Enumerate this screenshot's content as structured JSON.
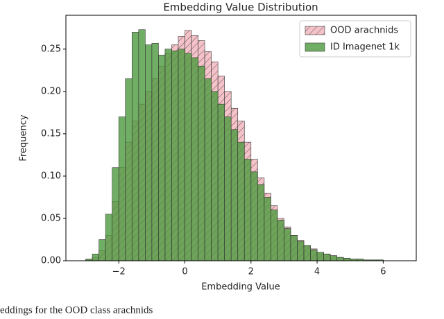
{
  "chart_data": {
    "type": "histogram",
    "title": "Embedding Value Distribution",
    "x_label": "Embedding Value",
    "y_label": "Frequency",
    "bins": [
      -3,
      -2.8,
      -2.6,
      -2.4,
      -2.2,
      -2,
      -1.8,
      -1.6,
      -1.4,
      -1.2,
      -1,
      -0.8,
      -0.6,
      -0.4,
      -0.2,
      0,
      0.2,
      0.4,
      0.6,
      0.8,
      1,
      1.2,
      1.4,
      1.6,
      1.8,
      2,
      2.2,
      2.4,
      2.6,
      2.8,
      3,
      3.2,
      3.4,
      3.6,
      3.8,
      4,
      4.2,
      4.4,
      4.6,
      4.8,
      5,
      5.2,
      5.4,
      5.6,
      5.8,
      6
    ],
    "series": [
      {
        "name": "OOD arachnids",
        "color": "#f4c2c8",
        "hatch": true,
        "values": [
          0.001,
          0.004,
          0.012,
          0.03,
          0.07,
          0.11,
          0.14,
          0.165,
          0.185,
          0.2,
          0.215,
          0.23,
          0.245,
          0.255,
          0.265,
          0.272,
          0.266,
          0.26,
          0.247,
          0.235,
          0.218,
          0.2,
          0.18,
          0.165,
          0.14,
          0.12,
          0.098,
          0.08,
          0.065,
          0.05,
          0.04,
          0.03,
          0.024,
          0.018,
          0.014,
          0.01,
          0.008,
          0.006,
          0.004,
          0.003,
          0.002,
          0.002,
          0.001,
          0.001,
          0.001
        ]
      },
      {
        "name": "ID Imagenet 1k",
        "color": "#4e9a3e",
        "hatch": false,
        "values": [
          0.002,
          0.008,
          0.025,
          0.055,
          0.11,
          0.17,
          0.215,
          0.27,
          0.273,
          0.255,
          0.257,
          0.243,
          0.25,
          0.248,
          0.25,
          0.245,
          0.24,
          0.23,
          0.215,
          0.2,
          0.185,
          0.17,
          0.155,
          0.14,
          0.12,
          0.105,
          0.09,
          0.075,
          0.06,
          0.048,
          0.038,
          0.03,
          0.023,
          0.018,
          0.013,
          0.01,
          0.008,
          0.006,
          0.004,
          0.003,
          0.002,
          0.002,
          0.001,
          0.001,
          0.001
        ]
      }
    ],
    "xlim": [
      -3.6,
      7.0
    ],
    "ylim": [
      0,
      0.29
    ],
    "xticks": [
      {
        "value": -2,
        "label": "−2"
      },
      0,
      2,
      4,
      6
    ],
    "yticks": [
      {
        "value": 0,
        "label": "0.00"
      },
      {
        "value": 0.05,
        "label": "0.05"
      },
      {
        "value": 0.1,
        "label": "0.10"
      },
      {
        "value": 0.15,
        "label": "0.15"
      },
      {
        "value": 0.2,
        "label": "0.20"
      },
      {
        "value": 0.25,
        "label": "0.25"
      }
    ],
    "legend": "upper right",
    "grid": false,
    "caption": "eddings for the OOD class arachnids"
  }
}
